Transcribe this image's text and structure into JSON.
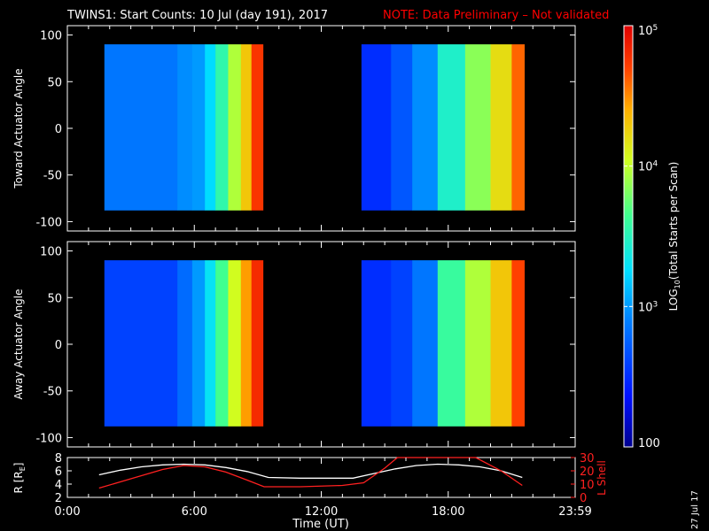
{
  "title": {
    "main": "TWINS1: Start Counts: 10 Jul (day 191), 2017",
    "note": "NOTE: Data Preliminary – Not validated",
    "note_color": "#ff0000"
  },
  "colorbar": {
    "label_main": "LOG",
    "label_sub": "10",
    "label_rest": "(Total Starts per Scan)",
    "ticks": [
      {
        "label": "100",
        "exp": "",
        "value": 100
      },
      {
        "label": "10",
        "exp": "3",
        "value": 1000
      },
      {
        "label": "10",
        "exp": "4",
        "value": 10000
      },
      {
        "label": "10",
        "exp": "5",
        "value": 100000
      }
    ],
    "range": [
      100,
      100000
    ],
    "scale": "log"
  },
  "chart_data": [
    {
      "type": "heatmap",
      "name": "toward",
      "ylabel": "Toward Actuator Angle",
      "xlim": [
        0,
        24
      ],
      "ylim": [
        -110,
        110
      ],
      "yticks": [
        -100,
        -50,
        0,
        50,
        100
      ],
      "angle_range": [
        -88,
        90
      ],
      "coverage_hours": [
        [
          1.75,
          9.25
        ],
        [
          13.9,
          21.6
        ]
      ],
      "bands": [
        {
          "t0": 1.75,
          "t1": 5.2,
          "log": 2.85
        },
        {
          "t0": 5.2,
          "t1": 5.9,
          "log": 2.95
        },
        {
          "t0": 5.9,
          "t1": 6.5,
          "log": 3.0
        },
        {
          "t0": 6.5,
          "t1": 7.0,
          "log": 3.25
        },
        {
          "t0": 7.0,
          "t1": 7.6,
          "log": 3.55
        },
        {
          "t0": 7.6,
          "t1": 8.2,
          "log": 3.95
        },
        {
          "t0": 8.2,
          "t1": 8.7,
          "log": 4.3
        },
        {
          "t0": 8.7,
          "t1": 9.25,
          "log": 4.75
        },
        {
          "t0": 13.9,
          "t1": 15.3,
          "log": 2.5
        },
        {
          "t0": 15.3,
          "t1": 16.3,
          "log": 2.7
        },
        {
          "t0": 16.3,
          "t1": 17.5,
          "log": 2.95
        },
        {
          "t0": 17.5,
          "t1": 18.8,
          "log": 3.45
        },
        {
          "t0": 18.8,
          "t1": 20.0,
          "log": 3.85
        },
        {
          "t0": 20.0,
          "t1": 21.0,
          "log": 4.2
        },
        {
          "t0": 21.0,
          "t1": 21.6,
          "log": 4.6
        }
      ]
    },
    {
      "type": "heatmap",
      "name": "away",
      "ylabel": "Away Actuator Angle",
      "xlim": [
        0,
        24
      ],
      "ylim": [
        -110,
        110
      ],
      "yticks": [
        -100,
        -50,
        0,
        50,
        100
      ],
      "angle_range": [
        -88,
        90
      ],
      "coverage_hours": [
        [
          1.75,
          9.25
        ],
        [
          13.9,
          21.6
        ]
      ],
      "bands": [
        {
          "t0": 1.75,
          "t1": 5.2,
          "log": 2.6
        },
        {
          "t0": 5.2,
          "t1": 5.9,
          "log": 2.8
        },
        {
          "t0": 5.9,
          "t1": 6.5,
          "log": 3.0
        },
        {
          "t0": 6.5,
          "t1": 7.0,
          "log": 3.3
        },
        {
          "t0": 7.0,
          "t1": 7.6,
          "log": 3.65
        },
        {
          "t0": 7.6,
          "t1": 8.2,
          "log": 4.05
        },
        {
          "t0": 8.2,
          "t1": 8.7,
          "log": 4.45
        },
        {
          "t0": 8.7,
          "t1": 9.25,
          "log": 4.8
        },
        {
          "t0": 13.9,
          "t1": 15.3,
          "log": 2.5
        },
        {
          "t0": 15.3,
          "t1": 16.3,
          "log": 2.6
        },
        {
          "t0": 16.3,
          "t1": 17.5,
          "log": 2.85
        },
        {
          "t0": 17.5,
          "t1": 18.8,
          "log": 3.6
        },
        {
          "t0": 18.8,
          "t1": 20.0,
          "log": 3.95
        },
        {
          "t0": 20.0,
          "t1": 21.0,
          "log": 4.3
        },
        {
          "t0": 21.0,
          "t1": 21.6,
          "log": 4.7
        }
      ]
    },
    {
      "type": "line",
      "name": "ephemeris",
      "xlabel": "Time (UT)",
      "ylabel_left": "R [R",
      "ylabel_left_sub": "E",
      "ylabel_left_end": "]",
      "ylabel_right": "L Shell",
      "xlim": [
        0,
        24
      ],
      "ylim_left": [
        2,
        8
      ],
      "ylim_right": [
        0,
        30
      ],
      "yticks_left": [
        2,
        4,
        6,
        8
      ],
      "yticks_right": [
        0,
        10,
        20,
        30
      ],
      "xticks": [
        {
          "value": 0,
          "label": "0:00"
        },
        {
          "value": 6,
          "label": "6:00"
        },
        {
          "value": 12,
          "label": "12:00"
        },
        {
          "value": 18,
          "label": "18:00"
        },
        {
          "value": 24,
          "label": "23:59"
        }
      ],
      "series": [
        {
          "name": "R",
          "axis": "left",
          "color": "#ffffff",
          "x": [
            1.5,
            2.5,
            3.5,
            4.5,
            5.5,
            6.5,
            7.5,
            8.5,
            9.5,
            11.0,
            12.5,
            13.5,
            14.5,
            15.5,
            16.5,
            17.5,
            18.5,
            19.5,
            20.5,
            21.5
          ],
          "y": [
            5.4,
            6.1,
            6.6,
            6.9,
            7.0,
            6.9,
            6.5,
            5.9,
            5.0,
            4.9,
            4.9,
            4.9,
            5.6,
            6.3,
            6.8,
            7.0,
            6.9,
            6.6,
            6.0,
            5.0
          ]
        },
        {
          "name": "L Shell",
          "axis": "right",
          "color": "#ff2020",
          "x": [
            1.5,
            3.0,
            4.5,
            5.5,
            6.5,
            7.5,
            8.5,
            9.3,
            11.0,
            13.0,
            14.0,
            15.0,
            15.6,
            19.3,
            20.5,
            21.5
          ],
          "y": [
            7,
            14,
            21,
            24,
            23,
            19,
            13,
            8,
            8,
            9,
            11,
            22,
            31,
            31,
            20,
            9
          ]
        }
      ]
    }
  ],
  "timestamp": "27 Jul 17"
}
